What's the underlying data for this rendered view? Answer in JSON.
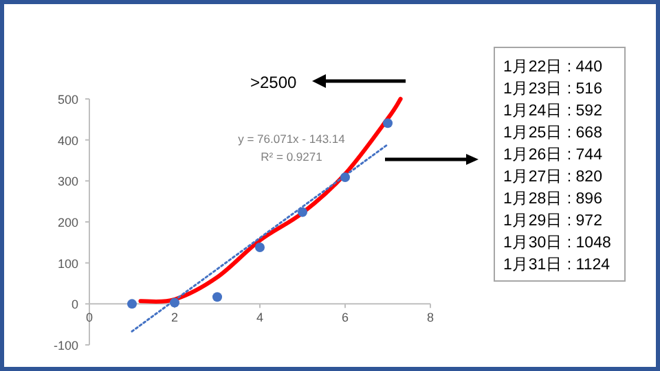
{
  "chart_data": {
    "type": "scatter",
    "xlim": [
      0,
      8
    ],
    "xticks": [
      0,
      2,
      4,
      6,
      8
    ],
    "ylim": [
      -100,
      500
    ],
    "yticks": [
      -100,
      0,
      100,
      200,
      300,
      400,
      500
    ],
    "series": [
      {
        "type": "line",
        "color": "#ff0000",
        "line_style": "solid",
        "x": [
          1.2,
          2,
          3,
          4,
          5,
          6,
          7,
          7.3
        ],
        "values": [
          7,
          11,
          65,
          155,
          222,
          317,
          452,
          500
        ]
      },
      {
        "type": "line",
        "color": "#4472c4",
        "line_style": "dotted",
        "x": [
          1,
          7
        ],
        "values": [
          -67,
          389
        ]
      },
      {
        "color": "#4472c4",
        "marker": "circle",
        "x": [
          1,
          2,
          3,
          4,
          5,
          6,
          7
        ],
        "values": [
          0,
          3,
          17,
          138,
          224,
          309,
          441
        ]
      }
    ],
    "annotations": [
      "y = 76.071x - 143.14",
      "R² = 0.9271",
      ">2500",
      "1月22日 : 440",
      "1月23日 : 516",
      "1月24日 : 592",
      "1月25日 : 668",
      "1月26日 : 744",
      "1月27日 : 820",
      "1月28日 : 896",
      "1月29日 : 972",
      "1月30日 : 1048",
      "1月31日 : 1124"
    ]
  }
}
